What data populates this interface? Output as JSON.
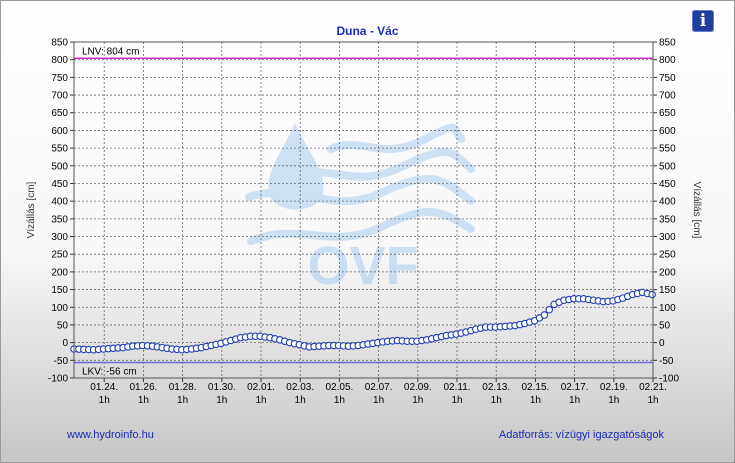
{
  "chart_data": {
    "type": "line",
    "title": "Duna - Vác",
    "ylabel": "Vízállás [cm]",
    "ylim": [
      -100,
      850
    ],
    "yticks": [
      850,
      800,
      750,
      700,
      650,
      600,
      550,
      500,
      450,
      400,
      350,
      300,
      250,
      200,
      150,
      100,
      50,
      0,
      -50,
      -100
    ],
    "xlim": [
      "2025-01-22T12:00",
      "2025-02-21T01:00"
    ],
    "xticks": [
      {
        "date": "01.24.",
        "time": "1h",
        "x": "2025-01-24T01:00"
      },
      {
        "date": "01.26.",
        "time": "1h",
        "x": "2025-01-26T01:00"
      },
      {
        "date": "01.28.",
        "time": "1h",
        "x": "2025-01-28T01:00"
      },
      {
        "date": "01.30.",
        "time": "1h",
        "x": "2025-01-30T01:00"
      },
      {
        "date": "02.01.",
        "time": "1h",
        "x": "2025-02-01T01:00"
      },
      {
        "date": "02.03.",
        "time": "1h",
        "x": "2025-02-03T01:00"
      },
      {
        "date": "02.05.",
        "time": "1h",
        "x": "2025-02-05T01:00"
      },
      {
        "date": "02.07.",
        "time": "1h",
        "x": "2025-02-07T01:00"
      },
      {
        "date": "02.09.",
        "time": "1h",
        "x": "2025-02-09T01:00"
      },
      {
        "date": "02.11.",
        "time": "1h",
        "x": "2025-02-11T01:00"
      },
      {
        "date": "02.13.",
        "time": "1h",
        "x": "2025-02-13T01:00"
      },
      {
        "date": "02.15.",
        "time": "1h",
        "x": "2025-02-15T01:00"
      },
      {
        "date": "02.17.",
        "time": "1h",
        "x": "2025-02-17T01:00"
      },
      {
        "date": "02.19.",
        "time": "1h",
        "x": "2025-02-19T01:00"
      },
      {
        "date": "02.21.",
        "time": "1h",
        "x": "2025-02-21T01:00"
      }
    ],
    "grid": true,
    "reference_lines": [
      {
        "label": "LNV: 804 cm",
        "value": 804,
        "color": "#cc33cc"
      },
      {
        "label": "LKV: -56 cm",
        "value": -56,
        "color": "#6b6bdd"
      }
    ],
    "series": [
      {
        "color": "#1f3fb0",
        "x": [
          "2025-01-22T12:00",
          "2025-01-23T00:00",
          "2025-01-23T12:00",
          "2025-01-24T00:00",
          "2025-01-24T12:00",
          "2025-01-25T00:00",
          "2025-01-25T12:00",
          "2025-01-26T00:00",
          "2025-01-26T12:00",
          "2025-01-27T00:00",
          "2025-01-27T12:00",
          "2025-01-28T00:00",
          "2025-01-28T12:00",
          "2025-01-29T00:00",
          "2025-01-29T12:00",
          "2025-01-30T00:00",
          "2025-01-30T12:00",
          "2025-01-31T00:00",
          "2025-01-31T12:00",
          "2025-02-01T00:00",
          "2025-02-01T12:00",
          "2025-02-02T00:00",
          "2025-02-02T12:00",
          "2025-02-03T00:00",
          "2025-02-03T12:00",
          "2025-02-04T00:00",
          "2025-02-04T12:00",
          "2025-02-05T00:00",
          "2025-02-05T12:00",
          "2025-02-06T00:00",
          "2025-02-06T12:00",
          "2025-02-07T00:00",
          "2025-02-07T12:00",
          "2025-02-08T00:00",
          "2025-02-08T12:00",
          "2025-02-09T00:00",
          "2025-02-09T12:00",
          "2025-02-10T00:00",
          "2025-02-10T12:00",
          "2025-02-11T00:00",
          "2025-02-11T12:00",
          "2025-02-12T00:00",
          "2025-02-12T12:00",
          "2025-02-13T00:00",
          "2025-02-13T12:00",
          "2025-02-14T00:00",
          "2025-02-14T12:00",
          "2025-02-15T00:00",
          "2025-02-15T12:00",
          "2025-02-16T00:00",
          "2025-02-16T12:00",
          "2025-02-17T00:00",
          "2025-02-17T12:00",
          "2025-02-18T00:00",
          "2025-02-18T12:00",
          "2025-02-19T00:00",
          "2025-02-19T12:00",
          "2025-02-20T00:00",
          "2025-02-20T12:00",
          "2025-02-21T00:00"
        ],
        "y": [
          -18,
          -19,
          -20,
          -18,
          -16,
          -14,
          -10,
          -8,
          -10,
          -14,
          -18,
          -20,
          -18,
          -14,
          -8,
          -2,
          6,
          14,
          18,
          18,
          14,
          8,
          0,
          -6,
          -12,
          -10,
          -8,
          -8,
          -10,
          -8,
          -4,
          0,
          4,
          6,
          4,
          4,
          8,
          14,
          20,
          24,
          30,
          38,
          44,
          44,
          46,
          48,
          54,
          62,
          78,
          108,
          120,
          124,
          124,
          120,
          116,
          118,
          126,
          136,
          142,
          136
        ]
      }
    ]
  },
  "watermark": "OVF",
  "info_icon": "i",
  "footer": {
    "left": "www.hydroinfo.hu",
    "right": "Adatforrás: vízügyi igazgatóságok"
  }
}
